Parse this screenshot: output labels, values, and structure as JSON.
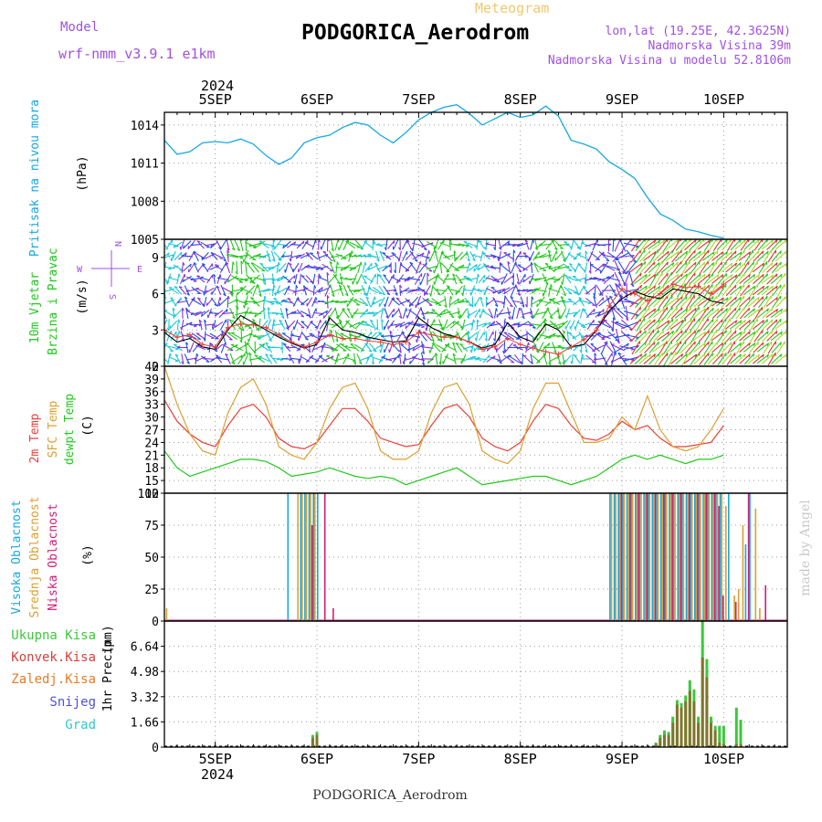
{
  "header": {
    "model_label": "Model",
    "model_name": "wrf-nmm_v3.9.1 e1km",
    "meteogram_label": "Meteogram",
    "station_title": "PODGORICA_Aerodrom",
    "lonlat": "lon,lat (19.25E, 42.3625N)",
    "altitude": "Nadmorska Visina 39m",
    "model_altitude": "Nadmorska Visina u modelu 52.8106m",
    "footer_station": "PODGORICA_Aerodrom",
    "credit": "made by Angel",
    "year": "2024"
  },
  "colors": {
    "pressure": "#16a8e0",
    "wind_speed": "#000000",
    "wind_gust": "#e8403a",
    "temp_2m": "#e8403a",
    "temp_sfc": "#dba032",
    "dewpoint": "#22c81e",
    "cloud_high": "#16a8e0",
    "cloud_mid": "#dba032",
    "cloud_low": "#d01e78",
    "precip_total": "#3cc83c",
    "precip_conv": "#d8403a",
    "precip_frozen": "#e87a28",
    "precip_snow": "#5050d8",
    "precip_graupel": "#30c8c8",
    "label_purple": "#a050e0"
  },
  "chart_data": [
    {
      "type": "line",
      "name": "pressure",
      "ylabel_outer": "Pritisak na nivou mora",
      "ylabel_unit": "(hPa)",
      "x_day_labels": [
        "5SEP",
        "6SEP",
        "7SEP",
        "8SEP",
        "9SEP",
        "10SEP"
      ],
      "ylim": [
        1005,
        1015
      ],
      "yticks": [
        1005,
        1008,
        1011,
        1014
      ],
      "grid": true,
      "time_hours_start": -6,
      "time_hours_step": 3,
      "series": [
        {
          "values": [
            1012.8,
            1011.7,
            1011.9,
            1012.6,
            1012.7,
            1012.6,
            1012.9,
            1012.5,
            1011.6,
            1010.9,
            1011.4,
            1012.6,
            1013.0,
            1013.2,
            1013.8,
            1014.2,
            1014.0,
            1013.2,
            1012.6,
            1013.4,
            1014.4,
            1015.0,
            1015.4,
            1015.6,
            1014.9,
            1014.0,
            1014.5,
            1015.0,
            1014.6,
            1014.8,
            1015.5,
            1014.7,
            1012.8,
            1012.5,
            1012.1,
            1011.1,
            1010.5,
            1009.8,
            1008.3,
            1007.0,
            1006.5,
            1005.8,
            1005.6,
            1005.3,
            1005.1
          ]
        }
      ]
    },
    {
      "type": "line",
      "name": "wind",
      "ylabel_outer": "10m Vjetar",
      "ylabel_inner": "Brzina i Pravac",
      "ylabel_unit": "(m/s)",
      "compass": {
        "north": "N",
        "south": "S",
        "east": "E",
        "west": "W"
      },
      "ylim": [
        0,
        10.5
      ],
      "yticks": [
        0,
        3,
        6,
        9
      ],
      "grid": true,
      "time_hours_start": -6,
      "time_hours_step": 3,
      "series": [
        {
          "name": "speed",
          "values": [
            2.8,
            2.0,
            2.3,
            1.6,
            1.4,
            3.0,
            4.2,
            3.6,
            3.0,
            2.4,
            1.9,
            1.5,
            1.8,
            4.0,
            3.0,
            2.8,
            2.4,
            2.2,
            2.0,
            2.1,
            4.0,
            3.2,
            2.7,
            2.4,
            2.0,
            1.5,
            1.8,
            3.6,
            2.4,
            2.0,
            3.5,
            3.0,
            1.6,
            1.8,
            3.0,
            4.6,
            5.6,
            6.2,
            5.8,
            5.6,
            6.4,
            6.2,
            6.0,
            5.4,
            5.2
          ]
        },
        {
          "name": "gust",
          "values": [
            3.0,
            2.4,
            2.6,
            1.8,
            1.6,
            3.2,
            3.5,
            3.4,
            3.2,
            2.6,
            2.0,
            1.6,
            2.0,
            2.6,
            2.3,
            2.3,
            2.1,
            2.0,
            1.8,
            2.0,
            2.8,
            2.6,
            2.4,
            2.4,
            2.0,
            1.4,
            1.6,
            2.3,
            1.8,
            1.5,
            1.2,
            1.0,
            1.6,
            2.2,
            3.0,
            5.0,
            6.4,
            6.0,
            5.4,
            6.0,
            6.8,
            6.5,
            6.6,
            6.0,
            6.8
          ]
        }
      ]
    },
    {
      "type": "line",
      "name": "temperature",
      "ylabel_outer": "2m Temp",
      "ylabel_mid": "SFC Temp",
      "ylabel_inner": "dewpt Temp",
      "ylabel_unit": "(C)",
      "ylim": [
        12,
        42
      ],
      "yticks": [
        12,
        15,
        18,
        21,
        24,
        27,
        30,
        33,
        36,
        39,
        42
      ],
      "grid": true,
      "time_hours_start": -6,
      "time_hours_step": 3,
      "series": [
        {
          "name": "2m Temp",
          "values": [
            34,
            29,
            26,
            24,
            23,
            28,
            32,
            33,
            30,
            25,
            23,
            22.5,
            24,
            28,
            32,
            32,
            29,
            25,
            24,
            23,
            23.5,
            28,
            32,
            33,
            30,
            25,
            23,
            22,
            24,
            29,
            33,
            32,
            28,
            25,
            24.5,
            26,
            29,
            27,
            28,
            25,
            23,
            23,
            23.5,
            24,
            28
          ]
        },
        {
          "name": "SFC Temp",
          "values": [
            42,
            33,
            26,
            22,
            21,
            31,
            37,
            39,
            33,
            23,
            21,
            20,
            24,
            32,
            37,
            38,
            32,
            22,
            20,
            20,
            22,
            31,
            37,
            38,
            33,
            22,
            20,
            19,
            22,
            32,
            38,
            38,
            31,
            24,
            24,
            25,
            30,
            27,
            35,
            27,
            23,
            22,
            23,
            27,
            32
          ]
        },
        {
          "name": "dewpt Temp",
          "values": [
            22,
            18,
            16,
            17,
            18,
            19,
            20,
            20,
            19.5,
            18,
            16,
            16.5,
            17,
            18,
            17,
            16,
            15.5,
            16,
            15.5,
            14,
            15,
            16,
            17,
            18,
            16,
            14,
            14.5,
            15,
            15.5,
            16,
            16,
            15,
            14,
            15,
            16,
            18,
            20,
            21,
            20,
            21,
            20,
            19,
            20,
            20,
            21
          ]
        }
      ]
    },
    {
      "type": "bar",
      "name": "cloud_cover",
      "ylabel_outer": "Visoka Oblacnost",
      "ylabel_mid": "Srednja Oblacnost",
      "ylabel_inner": "Niska Oblacnost",
      "ylabel_unit": "(%)",
      "ylim": [
        0,
        100
      ],
      "yticks": [
        0,
        25,
        50,
        75,
        100
      ],
      "grid": true,
      "time_hours_start": -6,
      "time_hours_step": 1,
      "series": [
        {
          "name": "high",
          "values": {
            "29": 100,
            "32": 100,
            "33": 100,
            "34": 100,
            "35": 100,
            "36": 100,
            "105": 100,
            "106": 100,
            "107": 100,
            "108": 100,
            "109": 100,
            "110": 100,
            "111": 100,
            "112": 100,
            "113": 100,
            "114": 100,
            "115": 100,
            "116": 100,
            "117": 100,
            "118": 100,
            "119": 100,
            "120": 100,
            "121": 100,
            "122": 100,
            "123": 100,
            "124": 100,
            "125": 100,
            "126": 100,
            "127": 100,
            "128": 100,
            "129": 100,
            "130": 100,
            "131": 100,
            "133": 100,
            "137": 60,
            "138": 100
          }
        },
        {
          "name": "mid",
          "values": {
            "0": 10,
            "31": 100,
            "32": 100,
            "33": 100,
            "34": 100,
            "35": 100,
            "105": 100,
            "106": 100,
            "107": 100,
            "108": 100,
            "109": 100,
            "110": 100,
            "111": 100,
            "112": 100,
            "113": 100,
            "114": 100,
            "115": 100,
            "116": 100,
            "117": 100,
            "118": 100,
            "119": 100,
            "120": 100,
            "121": 100,
            "122": 100,
            "123": 100,
            "124": 100,
            "125": 100,
            "126": 100,
            "127": 100,
            "128": 100,
            "129": 100,
            "130": 100,
            "131": 100,
            "132": 90,
            "134": 20,
            "135": 25,
            "136": 75,
            "139": 88,
            "140": 10
          }
        },
        {
          "name": "low",
          "values": {
            "34": 75,
            "37": 100,
            "39": 10,
            "107": 100,
            "109": 100,
            "111": 100,
            "113": 100,
            "115": 100,
            "117": 100,
            "119": 100,
            "121": 100,
            "123": 100,
            "125": 100,
            "127": 100,
            "129": 100,
            "130": 90,
            "131": 20,
            "134": 15,
            "137": 100,
            "141": 28
          }
        }
      ]
    },
    {
      "type": "bar",
      "name": "precipitation",
      "legend": [
        "Ukupna Kisa",
        "Konvek.Kisa",
        "Zaledj.Kisa",
        "Snijeg",
        "Grad"
      ],
      "ylabel_inner": "1hr Precip",
      "ylabel_unit": "(mm)",
      "ylim": [
        0,
        8.3
      ],
      "yticks": [
        0,
        1.66,
        3.32,
        4.98,
        6.64
      ],
      "grid": true,
      "time_hours_start": -6,
      "time_hours_step": 1,
      "series": [
        {
          "name": "Ukupna Kisa",
          "values": {
            "35": 0.8,
            "36": 1.0,
            "116": 0.3,
            "117": 0.8,
            "118": 1.1,
            "119": 1.0,
            "120": 2.0,
            "121": 3.1,
            "122": 2.9,
            "123": 3.4,
            "124": 4.4,
            "125": 3.8,
            "126": 2.0,
            "127": 8.3,
            "128": 5.8,
            "129": 2.0,
            "130": 1.4,
            "131": 1.4,
            "132": 1.4,
            "135": 2.6,
            "136": 1.8
          }
        },
        {
          "name": "Konvek.Kisa",
          "values": {
            "35": 0.6,
            "36": 0.8,
            "116": 0.2,
            "117": 0.6,
            "118": 0.8,
            "119": 0.8,
            "120": 1.6,
            "121": 2.8,
            "122": 2.6,
            "123": 3.0,
            "124": 3.7,
            "125": 3.0,
            "126": 1.6,
            "127": 5.9,
            "128": 4.6,
            "129": 1.6,
            "130": 1.1,
            "131": 0.3,
            "132": 0.2,
            "135": 0.2,
            "136": 0.2
          }
        }
      ]
    }
  ]
}
